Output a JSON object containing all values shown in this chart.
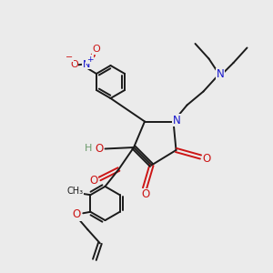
{
  "bg_color": "#ebebeb",
  "bond_color": "#1a1a1a",
  "nitrogen_color": "#1515cc",
  "oxygen_color": "#cc1515",
  "hydrogen_color": "#6a9a6a",
  "figsize": [
    3.0,
    3.0
  ],
  "dpi": 100,
  "xlim": [
    0,
    10
  ],
  "ylim": [
    0,
    10
  ]
}
